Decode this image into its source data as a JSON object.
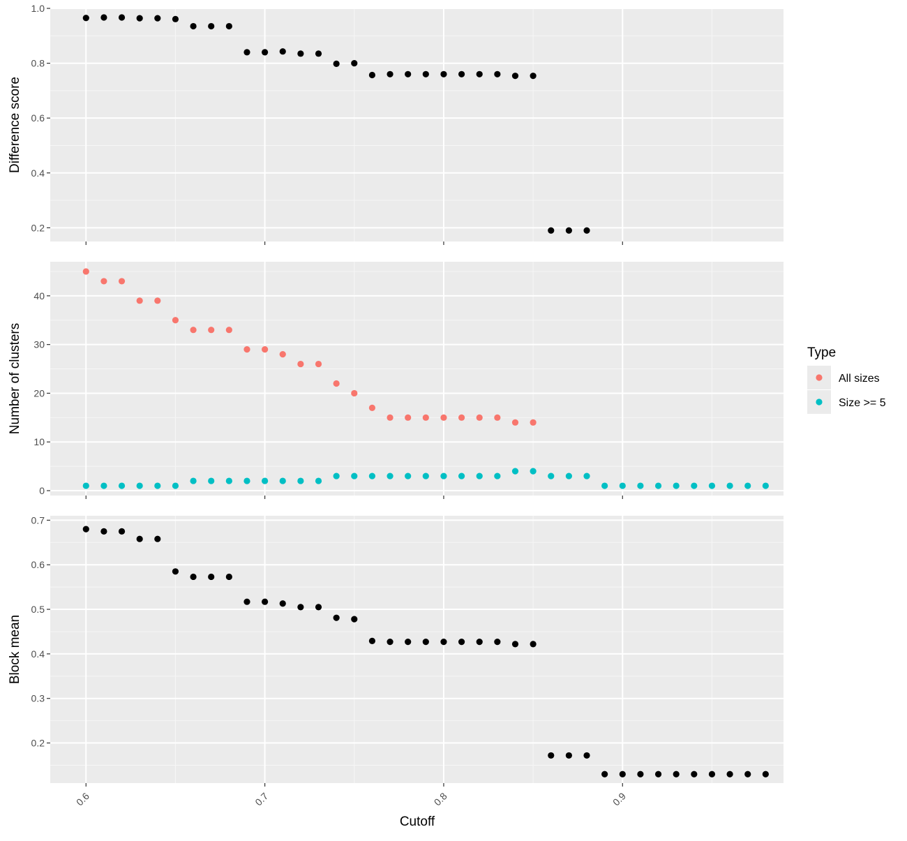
{
  "chart_data": [
    {
      "type": "scatter",
      "xlabel": "",
      "ylabel": "Difference score",
      "xlim": [
        0.58,
        0.99
      ],
      "ylim": [
        0.15,
        1.0
      ],
      "y_ticks": [
        0.2,
        0.4,
        0.6,
        0.8,
        1.0
      ],
      "y_tick_labels": [
        "0.2",
        "0.4",
        "0.6",
        "0.8",
        "1.0"
      ],
      "grid": true,
      "series": [
        {
          "color": "#000000",
          "x": [
            0.6,
            0.61,
            0.62,
            0.63,
            0.64,
            0.65,
            0.66,
            0.67,
            0.68,
            0.69,
            0.7,
            0.71,
            0.72,
            0.73,
            0.74,
            0.75,
            0.76,
            0.77,
            0.78,
            0.79,
            0.8,
            0.81,
            0.82,
            0.83,
            0.84,
            0.85,
            0.86,
            0.87,
            0.88
          ],
          "y": [
            0.965,
            0.967,
            0.967,
            0.964,
            0.964,
            0.961,
            0.935,
            0.935,
            0.935,
            0.84,
            0.84,
            0.843,
            0.835,
            0.835,
            0.798,
            0.8,
            0.757,
            0.76,
            0.76,
            0.76,
            0.76,
            0.76,
            0.76,
            0.76,
            0.754,
            0.754,
            0.19,
            0.19,
            0.19
          ]
        }
      ]
    },
    {
      "type": "scatter",
      "xlabel": "",
      "ylabel": "Number of clusters",
      "xlim": [
        0.58,
        0.99
      ],
      "ylim": [
        -1,
        47
      ],
      "y_ticks": [
        0,
        10,
        20,
        30,
        40
      ],
      "y_tick_labels": [
        "0",
        "10",
        "20",
        "30",
        "40"
      ],
      "grid": true,
      "legend": {
        "title": "Type",
        "placement": "right",
        "entries": [
          {
            "label": "All sizes",
            "color": "#F8766D"
          },
          {
            "label": "Size >= 5",
            "color": "#00BFC4"
          }
        ]
      },
      "series": [
        {
          "name": "All sizes",
          "color": "#F8766D",
          "x": [
            0.6,
            0.61,
            0.62,
            0.63,
            0.64,
            0.65,
            0.66,
            0.67,
            0.68,
            0.69,
            0.7,
            0.71,
            0.72,
            0.73,
            0.74,
            0.75,
            0.76,
            0.77,
            0.78,
            0.79,
            0.8,
            0.81,
            0.82,
            0.83,
            0.84,
            0.85
          ],
          "y": [
            45,
            43,
            43,
            39,
            39,
            35,
            33,
            33,
            33,
            29,
            29,
            28,
            26,
            26,
            22,
            20,
            17,
            15,
            15,
            15,
            15,
            15,
            15,
            15,
            14,
            14
          ]
        },
        {
          "name": "Size >= 5",
          "color": "#00BFC4",
          "x": [
            0.6,
            0.61,
            0.62,
            0.63,
            0.64,
            0.65,
            0.66,
            0.67,
            0.68,
            0.69,
            0.7,
            0.71,
            0.72,
            0.73,
            0.74,
            0.75,
            0.76,
            0.77,
            0.78,
            0.79,
            0.8,
            0.81,
            0.82,
            0.83,
            0.84,
            0.85,
            0.86,
            0.87,
            0.88,
            0.89,
            0.9,
            0.91,
            0.92,
            0.93,
            0.94,
            0.95,
            0.96,
            0.97,
            0.98
          ],
          "y": [
            1,
            1,
            1,
            1,
            1,
            1,
            2,
            2,
            2,
            2,
            2,
            2,
            2,
            2,
            3,
            3,
            3,
            3,
            3,
            3,
            3,
            3,
            3,
            3,
            4,
            4,
            3,
            3,
            3,
            1,
            1,
            1,
            1,
            1,
            1,
            1,
            1,
            1,
            1
          ]
        }
      ]
    },
    {
      "type": "scatter",
      "xlabel": "Cutoff",
      "ylabel": "Block mean",
      "xlim": [
        0.58,
        0.99
      ],
      "ylim": [
        0.11,
        0.71
      ],
      "y_ticks": [
        0.2,
        0.3,
        0.4,
        0.5,
        0.6,
        0.7
      ],
      "y_tick_labels": [
        "0.2",
        "0.3",
        "0.4",
        "0.5",
        "0.6",
        "0.7"
      ],
      "x_ticks": [
        0.6,
        0.7,
        0.8,
        0.9
      ],
      "x_tick_labels": [
        "0.6",
        "0.7",
        "0.8",
        "0.9"
      ],
      "grid": true,
      "series": [
        {
          "color": "#000000",
          "x": [
            0.6,
            0.61,
            0.62,
            0.63,
            0.64,
            0.65,
            0.66,
            0.67,
            0.68,
            0.69,
            0.7,
            0.71,
            0.72,
            0.73,
            0.74,
            0.75,
            0.76,
            0.77,
            0.78,
            0.79,
            0.8,
            0.81,
            0.82,
            0.83,
            0.84,
            0.85,
            0.86,
            0.87,
            0.88,
            0.89,
            0.9,
            0.91,
            0.92,
            0.93,
            0.94,
            0.95,
            0.96,
            0.97,
            0.98
          ],
          "y": [
            0.68,
            0.675,
            0.675,
            0.658,
            0.658,
            0.585,
            0.573,
            0.573,
            0.573,
            0.517,
            0.517,
            0.513,
            0.505,
            0.505,
            0.481,
            0.478,
            0.429,
            0.427,
            0.427,
            0.427,
            0.427,
            0.427,
            0.427,
            0.427,
            0.422,
            0.422,
            0.172,
            0.172,
            0.172,
            0.13,
            0.13,
            0.13,
            0.13,
            0.13,
            0.13,
            0.13,
            0.13,
            0.13,
            0.13
          ]
        }
      ]
    }
  ]
}
